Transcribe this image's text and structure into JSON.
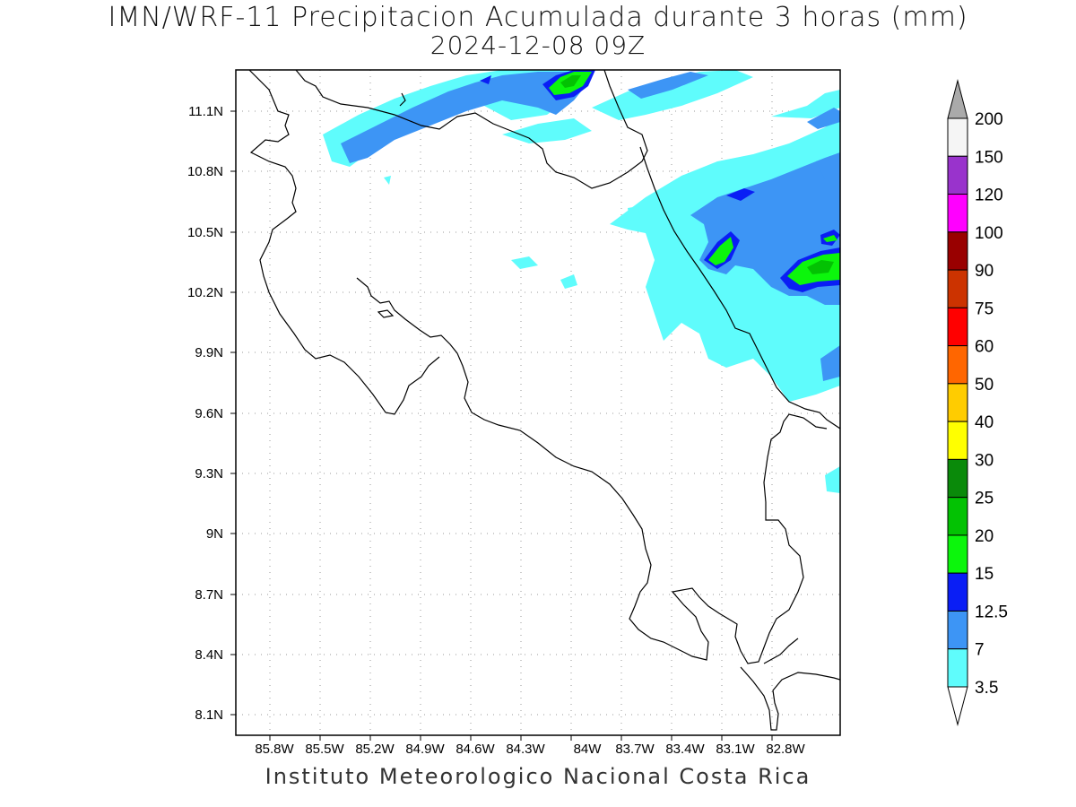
{
  "map": {
    "title_line1": "IMN/WRF-11 Precipitacion Acumulada durante 3 horas (mm)",
    "title_line2": "2024-12-08 09Z",
    "footer": "Instituto Meteorologico Nacional Costa Rica",
    "lon_ticks": [
      "85.8W",
      "85.5W",
      "85.2W",
      "84.9W",
      "84.6W",
      "84.3W",
      "84W",
      "83.7W",
      "83.4W",
      "83.1W",
      "82.8W"
    ],
    "lat_ticks": [
      "11.1N",
      "10.8N",
      "10.5N",
      "10.2N",
      "9.9N",
      "9.6N",
      "9.3N",
      "9N",
      "8.7N",
      "8.4N",
      "8.1N"
    ],
    "coastline_color": "#000000"
  },
  "legend": {
    "levels": [
      "3.5",
      "7",
      "12.5",
      "15",
      "20",
      "25",
      "30",
      "40",
      "50",
      "60",
      "75",
      "90",
      "100",
      "120",
      "150",
      "200"
    ],
    "colors": [
      "#ffffff",
      "#5ffcfc",
      "#3d95f5",
      "#0a1ef5",
      "#0cf60c",
      "#03c203",
      "#0a8a0a",
      "#ffff00",
      "#ffcc00",
      "#ff6600",
      "#ff0000",
      "#cc3300",
      "#990000",
      "#ff00ff",
      "#9933cc",
      "#f5f5f5",
      "#aaaaaa"
    ]
  }
}
